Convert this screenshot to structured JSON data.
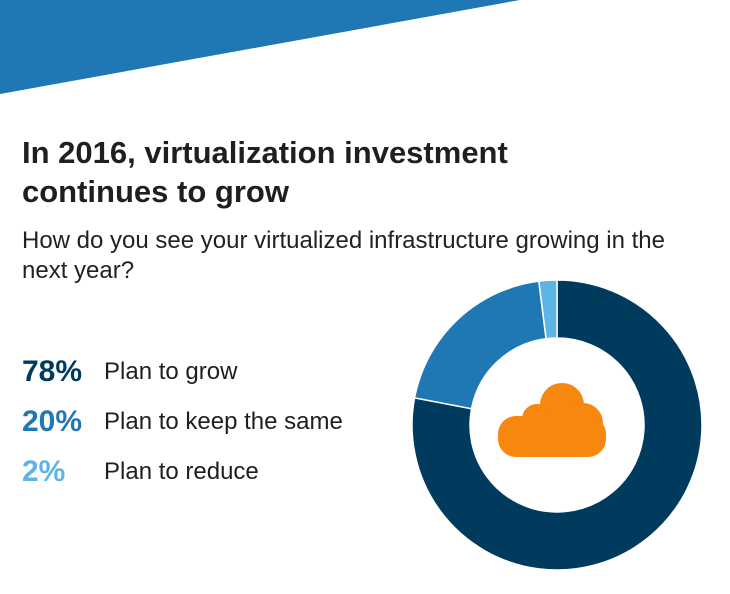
{
  "title": "In 2016, virtualization investment continues to grow",
  "subtitle": "How do you see your virtualized infrastructure growing in the next year?",
  "colors": {
    "banner": "#1f77b4",
    "icon": "#f7870f"
  },
  "icon": "cloud-icon",
  "chart_data": {
    "type": "pie",
    "title": "In 2016, virtualization investment continues to grow",
    "subtitle": "How do you see your virtualized infrastructure growing in the next year?",
    "categories": [
      "Plan to grow",
      "Plan to keep the same",
      "Plan to reduce"
    ],
    "values": [
      78,
      20,
      2
    ],
    "value_labels": [
      "78%",
      "20%",
      "2%"
    ],
    "colors": [
      "#003a5d",
      "#1f77b4",
      "#5db5e4"
    ],
    "donut": true,
    "legend": "left"
  }
}
